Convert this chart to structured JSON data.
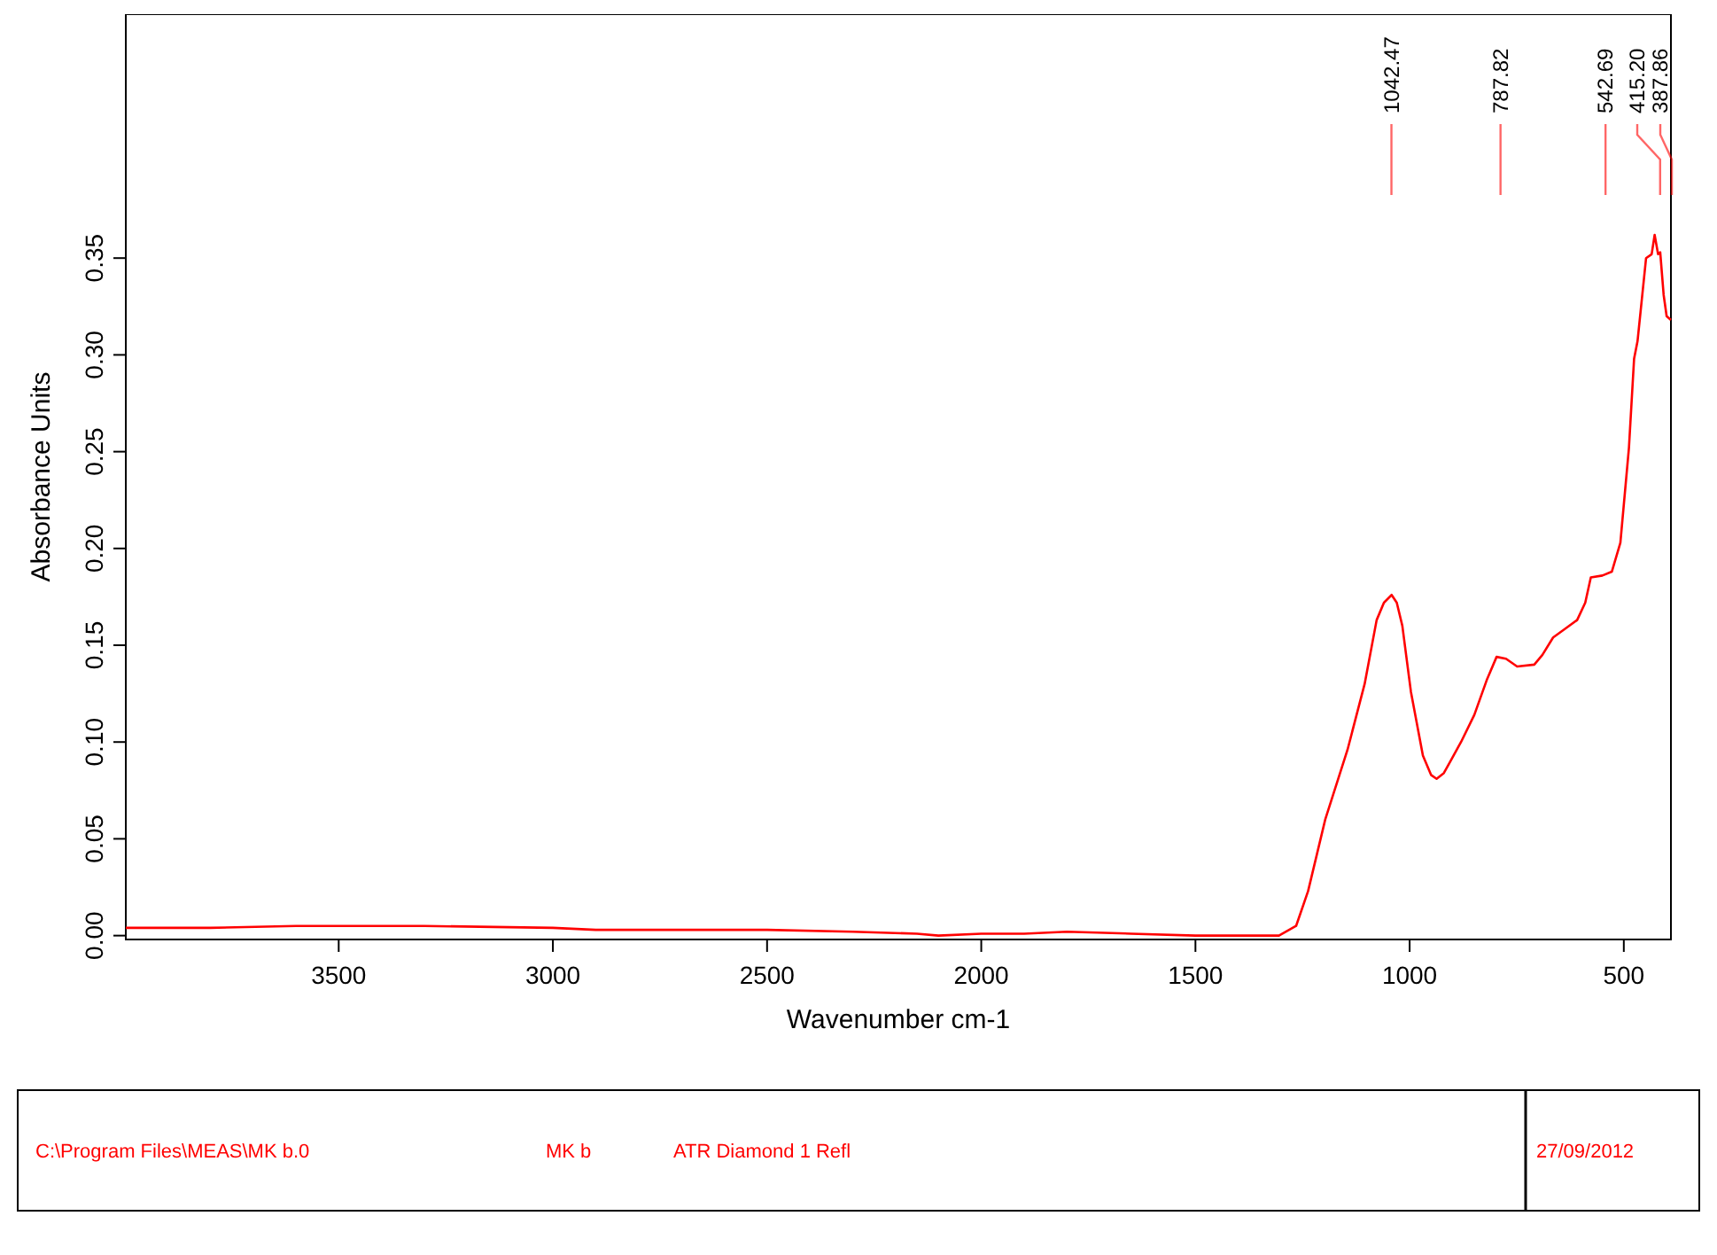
{
  "chart_data": {
    "type": "line",
    "xlabel": "Wavenumber cm-1",
    "ylabel": "Absorbance Units",
    "xlim": [
      3997,
      390
    ],
    "ylim": [
      -0.002,
      0.476
    ],
    "xticks": [
      3500,
      3000,
      2500,
      2000,
      1500,
      1000,
      500
    ],
    "yticks": [
      {
        "value": 0,
        "label": "0.00"
      },
      {
        "value": 0.05,
        "label": "0.05"
      },
      {
        "value": 0.1,
        "label": "0.10"
      },
      {
        "value": 0.15,
        "label": "0.15"
      },
      {
        "value": 0.2,
        "label": "0.20"
      },
      {
        "value": 0.25,
        "label": "0.25"
      },
      {
        "value": 0.3,
        "label": "0.30"
      },
      {
        "value": 0.35,
        "label": "0.35"
      }
    ],
    "grid": false,
    "marker": "none",
    "line_style": "solid",
    "series": [
      {
        "color": "#ff0000",
        "x": [
          3997,
          3800,
          3600,
          3500,
          3300,
          3000,
          2900,
          2700,
          2500,
          2300,
          2150,
          2100,
          2000,
          1900,
          1800,
          1650,
          1500,
          1400,
          1350,
          1305,
          1265,
          1237,
          1197,
          1145,
          1105,
          1077,
          1060,
          1042,
          1030,
          1017,
          997,
          969,
          950,
          937,
          920,
          905,
          880,
          849,
          820,
          797,
          775,
          749,
          709,
          690,
          665,
          640,
          609,
          590,
          577,
          550,
          528,
          508,
          488,
          476,
          468,
          448,
          435,
          428,
          420,
          415,
          407,
          400,
          390
        ],
        "values": [
          0.004,
          0.004,
          0.005,
          0.005,
          0.005,
          0.004,
          0.003,
          0.003,
          0.003,
          0.002,
          0.001,
          0.0,
          0.001,
          0.001,
          0.002,
          0.001,
          0.0,
          0.0,
          0.0,
          0.0,
          0.005,
          0.023,
          0.06,
          0.096,
          0.13,
          0.163,
          0.172,
          0.176,
          0.172,
          0.16,
          0.126,
          0.093,
          0.083,
          0.081,
          0.084,
          0.09,
          0.1,
          0.114,
          0.132,
          0.144,
          0.143,
          0.139,
          0.14,
          0.145,
          0.154,
          0.158,
          0.163,
          0.172,
          0.185,
          0.186,
          0.188,
          0.203,
          0.252,
          0.298,
          0.307,
          0.35,
          0.352,
          0.362,
          0.352,
          0.353,
          0.331,
          0.32,
          0.318
        ]
      }
    ],
    "annotations": [
      {
        "text": "1042.47",
        "x": 1042.47
      },
      {
        "text": "787.82",
        "x": 787.82
      },
      {
        "text": "542.69",
        "x": 542.69
      },
      {
        "text": "415.20",
        "x": 415.2
      },
      {
        "text": "387.86",
        "x": 387.86
      },
      "C:\\Program Files\\MEAS\\MK b.0",
      "MK b",
      "ATR Diamond 1 Refl",
      "27/09/2012"
    ]
  }
}
